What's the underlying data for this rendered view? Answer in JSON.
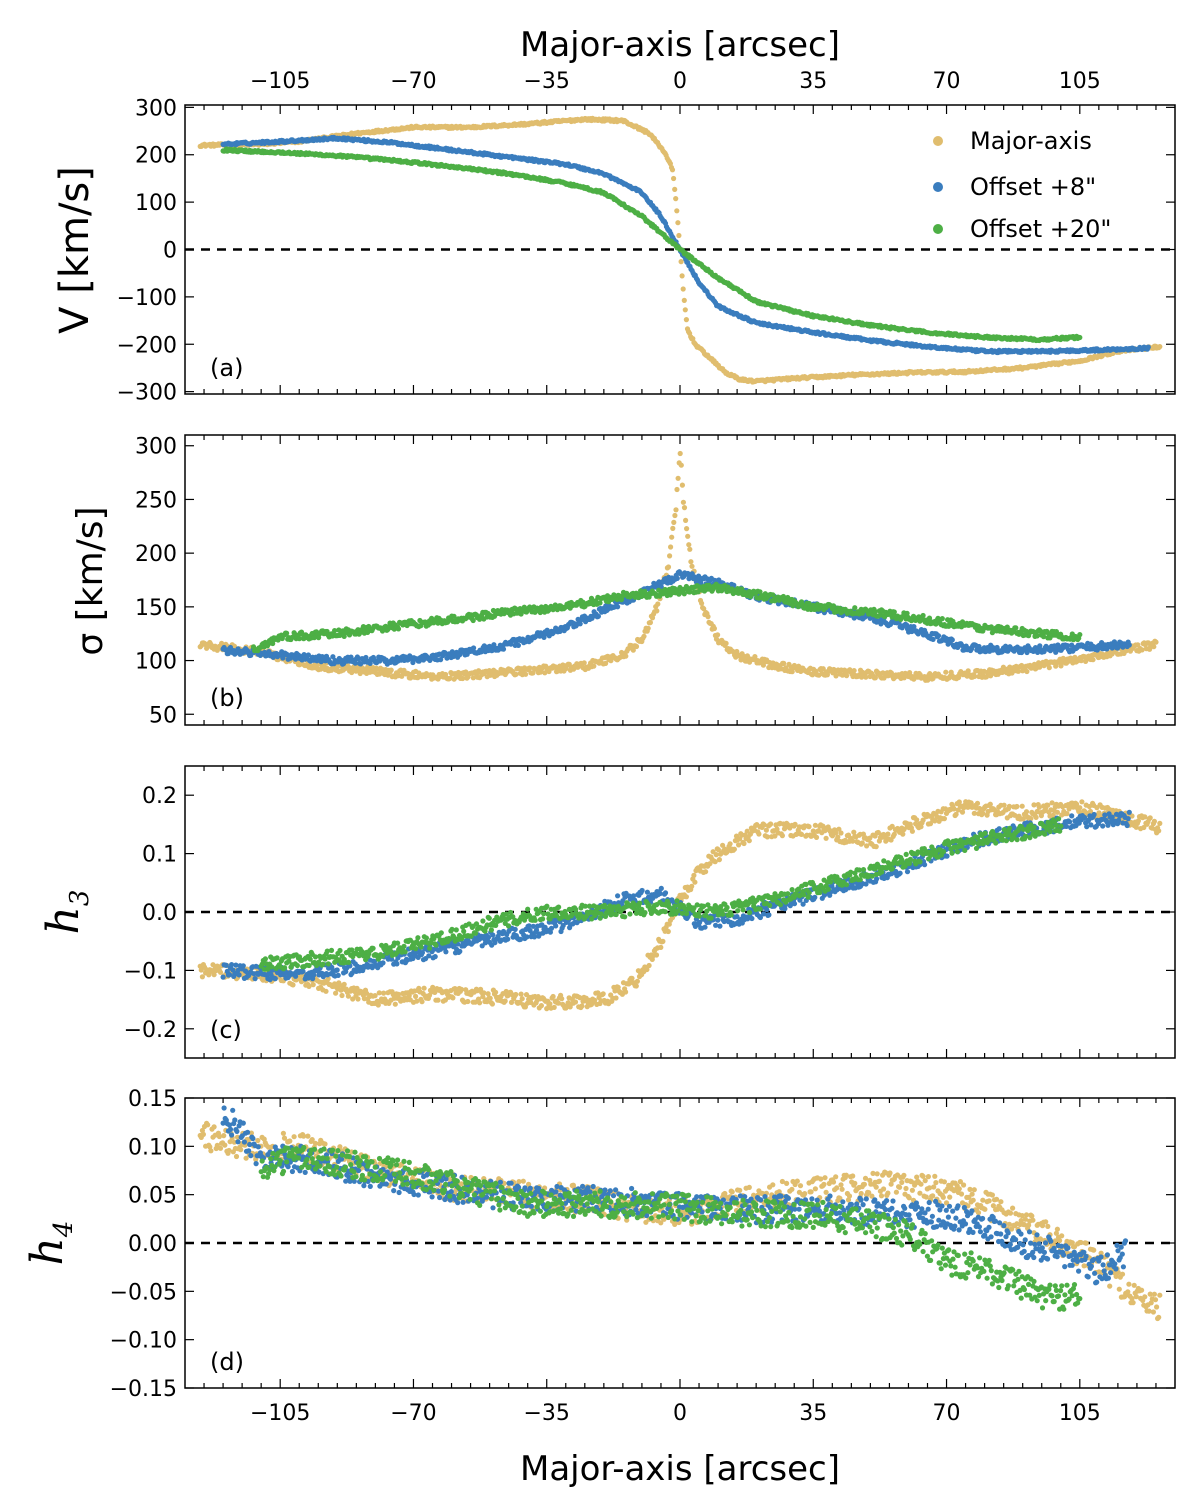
{
  "chart_data": {
    "type": "scatter",
    "top_xlabel": "Major-axis [arcsec]",
    "bottom_xlabel": "Major-axis [arcsec]",
    "xlim": [
      -130,
      130
    ],
    "xticks": [
      -105,
      -70,
      -35,
      0,
      35,
      70,
      105
    ],
    "xtick_labels": [
      "−105",
      "−70",
      "−35",
      "0",
      "35",
      "70",
      "105"
    ],
    "legend": {
      "placement": "top-right",
      "entries": [
        {
          "name": "Major-axis",
          "color": "#E0BD6E"
        },
        {
          "name": "Offset +8\"",
          "color": "#3A7DBE"
        },
        {
          "name": "Offset +20\"",
          "color": "#4DAF45"
        }
      ]
    },
    "series_colors": {
      "major": "#E0BD6E",
      "off8": "#3A7DBE",
      "off20": "#4DAF45"
    },
    "panels": [
      {
        "id": "a",
        "label": "(a)",
        "ylabel": "V [km/s]",
        "ylim": [
          -305,
          305
        ],
        "yticks": [
          300,
          200,
          100,
          0,
          -100,
          -200,
          -300
        ],
        "ytick_labels": [
          "300",
          "200",
          "100",
          "0",
          "−100",
          "−200",
          "−300"
        ],
        "zero_line": true,
        "series": [
          {
            "key": "major",
            "name": "Major-axis",
            "x": [
              -126,
              -110,
              -100,
              -85,
              -70,
              -55,
              -40,
              -25,
              -15,
              -8,
              -4,
              -2,
              -1,
              0,
              1,
              2,
              4,
              8,
              12,
              16,
              20,
              30,
              45,
              60,
              75,
              90,
              105,
              115,
              126
            ],
            "y": [
              220,
              222,
              228,
              245,
              258,
              258,
              265,
              275,
              272,
              245,
              205,
              170,
              100,
              0,
              -100,
              -170,
              -200,
              -230,
              -260,
              -275,
              -278,
              -272,
              -265,
              -260,
              -258,
              -250,
              -235,
              -215,
              -205
            ]
          },
          {
            "key": "off8",
            "name": "Offset +8\"",
            "x": [
              -120,
              -105,
              -90,
              -75,
              -60,
              -45,
              -30,
              -20,
              -10,
              -5,
              0,
              5,
              10,
              20,
              35,
              50,
              65,
              80,
              95,
              110,
              123
            ],
            "y": [
              222,
              228,
              235,
              225,
              210,
              195,
              180,
              160,
              120,
              70,
              0,
              -70,
              -120,
              -155,
              -175,
              -192,
              -205,
              -215,
              -215,
              -212,
              -208
            ]
          },
          {
            "key": "off20",
            "name": "Offset +20\"",
            "x": [
              -120,
              -105,
              -90,
              -75,
              -60,
              -45,
              -30,
              -20,
              -10,
              0,
              10,
              20,
              35,
              50,
              65,
              80,
              95,
              105
            ],
            "y": [
              210,
              205,
              198,
              188,
              175,
              160,
              140,
              120,
              70,
              0,
              -60,
              -110,
              -140,
              -160,
              -175,
              -185,
              -190,
              -185
            ]
          }
        ]
      },
      {
        "id": "b",
        "label": "(b)",
        "ylabel": "σ [km/s]",
        "ylim": [
          40,
          310
        ],
        "yticks": [
          300,
          250,
          200,
          150,
          100,
          50
        ],
        "ytick_labels": [
          "300",
          "250",
          "200",
          "150",
          "100",
          "50"
        ],
        "zero_line": false,
        "series": [
          {
            "key": "major",
            "name": "Major-axis",
            "x": [
              -126,
              -110,
              -95,
              -80,
              -65,
              -50,
              -35,
              -25,
              -15,
              -10,
              -6,
              -3,
              -1,
              0,
              1,
              3,
              6,
              10,
              15,
              25,
              35,
              50,
              65,
              80,
              95,
              110,
              125
            ],
            "y": [
              115,
              108,
              95,
              90,
              85,
              88,
              92,
              95,
              105,
              120,
              150,
              190,
              245,
              298,
              245,
              190,
              150,
              120,
              105,
              95,
              90,
              87,
              85,
              88,
              95,
              105,
              115
            ]
          },
          {
            "key": "off8",
            "name": "Offset +8\"",
            "x": [
              -120,
              -105,
              -90,
              -75,
              -60,
              -45,
              -30,
              -15,
              0,
              10,
              20,
              35,
              50,
              65,
              75,
              90,
              105,
              118
            ],
            "y": [
              110,
              105,
              100,
              100,
              105,
              115,
              130,
              155,
              180,
              172,
              160,
              150,
              140,
              125,
              112,
              110,
              112,
              115
            ]
          },
          {
            "key": "off20",
            "name": "Offset +20\"",
            "x": [
              -112,
              -105,
              -90,
              -75,
              -60,
              -45,
              -30,
              -15,
              0,
              10,
              20,
              35,
              50,
              65,
              80,
              95,
              105
            ],
            "y": [
              110,
              122,
              125,
              132,
              138,
              145,
              150,
              160,
              165,
              168,
              162,
              150,
              145,
              138,
              130,
              125,
              122
            ]
          }
        ]
      },
      {
        "id": "c",
        "label": "(c)",
        "ylabel": "h3",
        "ylim": [
          -0.25,
          0.25
        ],
        "yticks": [
          0.2,
          0.1,
          0.0,
          -0.1,
          -0.2
        ],
        "ytick_labels": [
          "0.2",
          "0.1",
          "0.0",
          "−0.1",
          "−0.2"
        ],
        "zero_line": true,
        "series": [
          {
            "key": "major",
            "name": "Major-axis",
            "x": [
              -126,
              -110,
              -95,
              -80,
              -65,
              -50,
              -35,
              -20,
              -12,
              -5,
              0,
              5,
              10,
              20,
              35,
              50,
              65,
              75,
              90,
              105,
              118,
              126
            ],
            "y": [
              -0.1,
              -0.105,
              -0.12,
              -0.15,
              -0.14,
              -0.145,
              -0.155,
              -0.15,
              -0.12,
              -0.05,
              0.02,
              0.07,
              0.1,
              0.14,
              0.14,
              0.12,
              0.16,
              0.18,
              0.17,
              0.18,
              0.16,
              0.145
            ]
          },
          {
            "key": "off8",
            "name": "Offset +8\"",
            "x": [
              -120,
              -105,
              -90,
              -75,
              -60,
              -45,
              -30,
              -15,
              -5,
              5,
              15,
              30,
              45,
              60,
              75,
              90,
              105,
              118
            ],
            "y": [
              -0.1,
              -0.105,
              -0.1,
              -0.08,
              -0.06,
              -0.04,
              -0.02,
              0.02,
              0.03,
              -0.02,
              -0.01,
              0.02,
              0.05,
              0.08,
              0.12,
              0.14,
              0.155,
              0.16
            ]
          },
          {
            "key": "off20",
            "name": "Offset +20\"",
            "x": [
              -110,
              -95,
              -80,
              -65,
              -50,
              -35,
              -20,
              -5,
              10,
              25,
              40,
              55,
              70,
              85,
              100
            ],
            "y": [
              -0.09,
              -0.08,
              -0.07,
              -0.05,
              -0.02,
              0.0,
              0.0,
              0.01,
              0.0,
              0.02,
              0.05,
              0.08,
              0.11,
              0.13,
              0.15
            ]
          }
        ]
      },
      {
        "id": "d",
        "label": "(d)",
        "ylabel": "h4",
        "ylim": [
          -0.15,
          0.15
        ],
        "yticks": [
          0.15,
          0.1,
          0.05,
          0.0,
          -0.05,
          -0.1,
          -0.15
        ],
        "ytick_labels": [
          "0.15",
          "0.10",
          "0.05",
          "0.00",
          "−0.05",
          "−0.10",
          "−0.15"
        ],
        "zero_line": true,
        "series": [
          {
            "key": "major",
            "name": "Major-axis",
            "x": [
              -126,
              -115,
              -100,
              -85,
              -70,
              -55,
              -40,
              -25,
              -10,
              0,
              10,
              25,
              40,
              55,
              70,
              80,
              90,
              100,
              110,
              118,
              126
            ],
            "y": [
              0.112,
              0.1,
              0.1,
              0.08,
              0.065,
              0.055,
              0.05,
              0.045,
              0.035,
              0.03,
              0.04,
              0.05,
              0.055,
              0.06,
              0.055,
              0.04,
              0.02,
              0.0,
              -0.02,
              -0.05,
              -0.068
            ]
          },
          {
            "key": "off8",
            "name": "Offset +8\"",
            "x": [
              -120,
              -110,
              -95,
              -80,
              -65,
              -50,
              -35,
              -20,
              -5,
              10,
              25,
              40,
              55,
              70,
              80,
              90,
              100,
              110,
              117
            ],
            "y": [
              0.135,
              0.09,
              0.085,
              0.07,
              0.06,
              0.05,
              0.045,
              0.045,
              0.04,
              0.035,
              0.035,
              0.035,
              0.03,
              0.03,
              0.02,
              0.0,
              -0.01,
              -0.03,
              -0.01
            ]
          },
          {
            "key": "off20",
            "name": "Offset +20\"",
            "x": [
              -110,
              -100,
              -85,
              -70,
              -55,
              -40,
              -25,
              -10,
              5,
              20,
              35,
              50,
              60,
              70,
              80,
              95,
              105
            ],
            "y": [
              0.08,
              0.09,
              0.08,
              0.07,
              0.055,
              0.04,
              0.04,
              0.04,
              0.035,
              0.03,
              0.03,
              0.02,
              0.01,
              -0.02,
              -0.025,
              -0.055,
              -0.055
            ]
          }
        ]
      }
    ]
  }
}
